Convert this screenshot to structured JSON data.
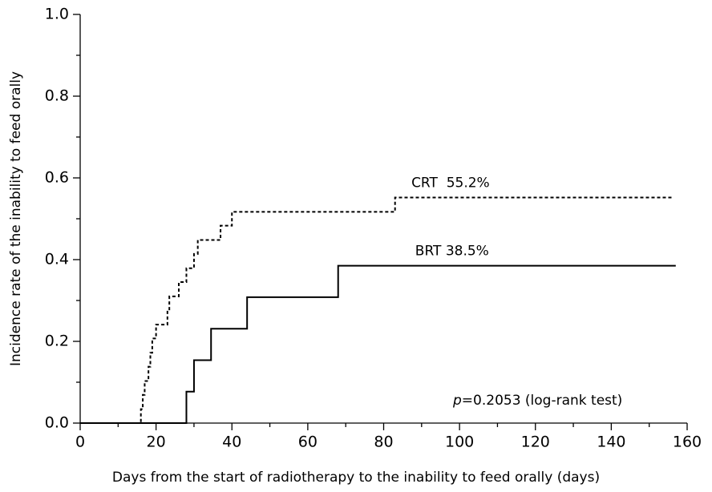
{
  "chart_data": {
    "type": "step",
    "xlabel": "Days from the start of radiotherapy to the inability to feed orally (days)",
    "ylabel": "Incidence rate of the inability to feed orally",
    "xlim": [
      0,
      160
    ],
    "xticks": [
      0,
      20,
      40,
      60,
      80,
      100,
      120,
      140,
      160
    ],
    "xminorticks": [
      10,
      30,
      50,
      70,
      90,
      110,
      130,
      150
    ],
    "ylim": [
      0,
      1.0
    ],
    "yticks": [
      {
        "value": 0,
        "label": "0.0"
      },
      {
        "value": 0.2,
        "label": "0.2"
      },
      {
        "value": 0.4,
        "label": "0.4"
      },
      {
        "value": 0.6,
        "label": "0.6"
      },
      {
        "value": 0.8,
        "label": "0.8"
      },
      {
        "value": 1.0,
        "label": "1.0"
      }
    ],
    "yminorticks": [
      0.1,
      0.3,
      0.5,
      0.7,
      0.9
    ],
    "series": [
      {
        "name": "CRT  55.2%",
        "color": "#000000",
        "dash": true,
        "x": [
          0,
          16,
          16.5,
          17,
          18,
          18.5,
          19,
          20,
          23,
          23.5,
          26,
          28,
          30,
          31,
          37,
          40,
          83,
          156
        ],
        "values": [
          0,
          0.034,
          0.069,
          0.103,
          0.138,
          0.172,
          0.207,
          0.241,
          0.276,
          0.31,
          0.345,
          0.379,
          0.414,
          0.448,
          0.483,
          0.517,
          0.552,
          0.552
        ]
      },
      {
        "name": "BRT 38.5%",
        "color": "#000000",
        "dash": false,
        "x": [
          0,
          28,
          30,
          34.5,
          44,
          68,
          157
        ],
        "values": [
          0,
          0.077,
          0.154,
          0.231,
          0.308,
          0.385,
          0.385
        ]
      }
    ],
    "annotation": {
      "italic": "p",
      "text": "=0.2053 (log-rank test)"
    }
  }
}
